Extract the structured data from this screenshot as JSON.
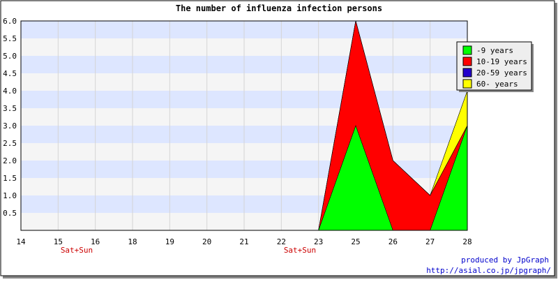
{
  "chart_data": {
    "type": "area",
    "title": "The number of influenza infection persons",
    "x_ticks": [
      "14",
      "15",
      "16",
      "18",
      "19",
      "20",
      "21",
      "22",
      "23",
      "25",
      "26",
      "27",
      "28"
    ],
    "weekend_markers": [
      {
        "after_tick": "15",
        "label": "Sat+Sun"
      },
      {
        "after_tick": "22",
        "label": "Sat+Sun"
      }
    ],
    "y_ticks": [
      "0.5",
      "1.0",
      "1.5",
      "2.0",
      "2.5",
      "3.0",
      "3.5",
      "4.0",
      "4.5",
      "5.0",
      "5.5",
      "6.0"
    ],
    "ylim": [
      0,
      6
    ],
    "stacked": true,
    "series": [
      {
        "name": "-9 years",
        "color": "#00ff00",
        "values": [
          0,
          0,
          0,
          0,
          0,
          0,
          0,
          0,
          0,
          3,
          0,
          0,
          3
        ]
      },
      {
        "name": "10-19 years",
        "color": "#ff0000",
        "values": [
          0,
          0,
          0,
          0,
          0,
          0,
          0,
          0,
          0,
          3,
          2,
          1,
          0
        ]
      },
      {
        "name": "20-59 years",
        "color": "#2200cc",
        "values": [
          0,
          0,
          0,
          0,
          0,
          0,
          0,
          0,
          0,
          0,
          0,
          0,
          0
        ]
      },
      {
        "name": "60- years",
        "color": "#ffff00",
        "values": [
          0,
          0,
          0,
          0,
          0,
          0,
          0,
          0,
          0,
          0,
          0,
          0,
          1
        ]
      }
    ],
    "legend_position": "top-right",
    "band_colors": [
      "#f5f5f5",
      "#dde6ff"
    ],
    "weekend_label_color": "#cc0000"
  },
  "footer": {
    "produced_by": "produced by JpGraph",
    "url": "http://asial.co.jp/jpgraph/",
    "color": "#0000cc"
  }
}
